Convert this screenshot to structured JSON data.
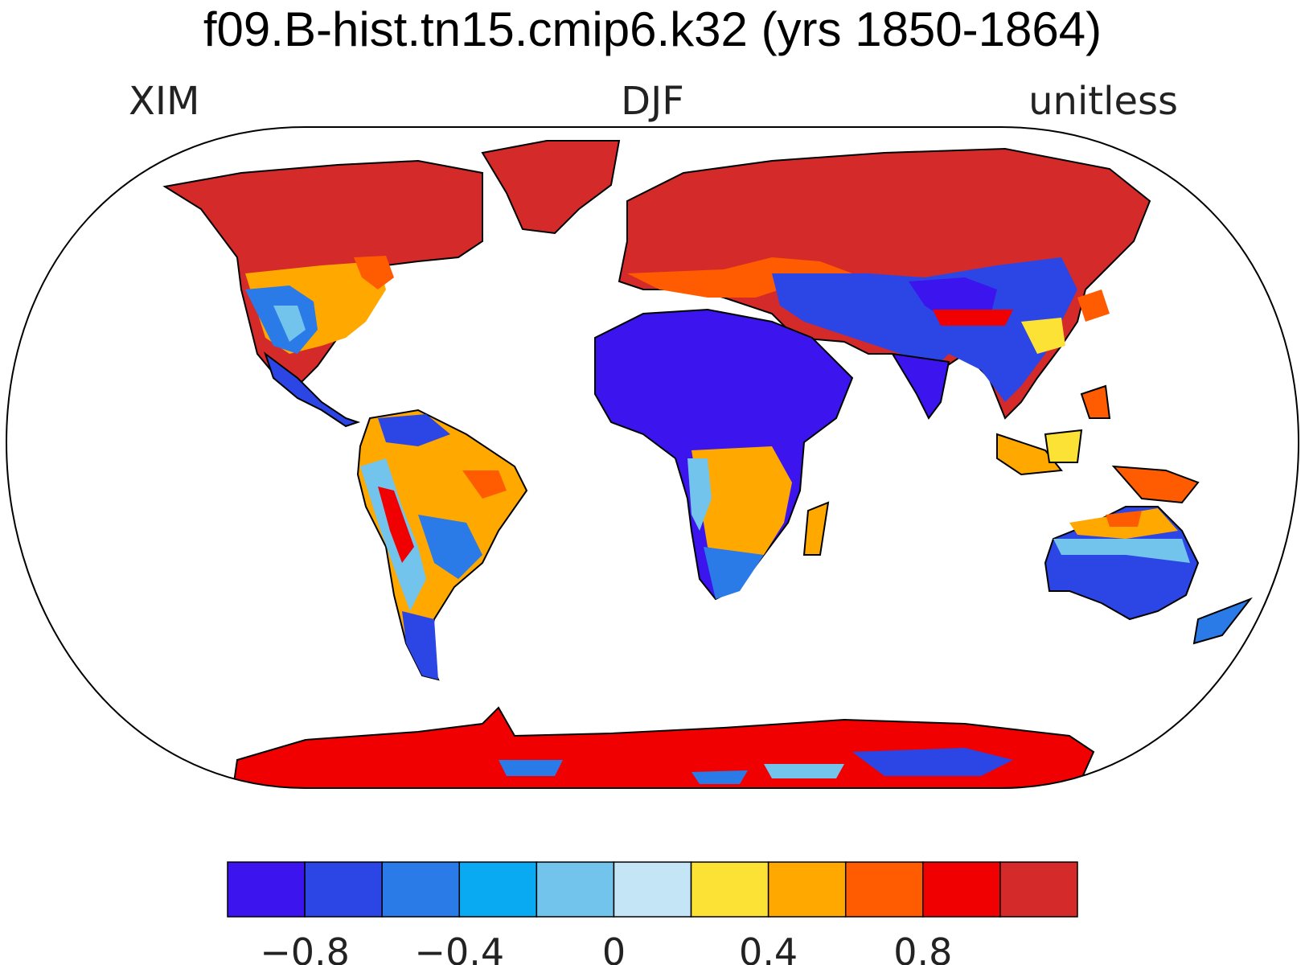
{
  "title": "f09.B-hist.tn15.cmip6.k32 (yrs 1850-1864)",
  "left_label": "XIM",
  "center_label": "DJF",
  "right_label": "unitless",
  "colorbar": {
    "colors": [
      "#3c14ee",
      "#2c46e6",
      "#2a7ae8",
      "#0aaaf2",
      "#73c4ec",
      "#c4e5f6",
      "#fde236",
      "#ffa800",
      "#ff5b00",
      "#f00000",
      "#d42a2a"
    ],
    "tick_labels": [
      "−0.8",
      "−0.4",
      "0",
      "0.4",
      "0.8"
    ],
    "tick_values": [
      -0.8,
      -0.4,
      0,
      0.4,
      0.8
    ]
  },
  "map_colors": {
    "ocean": "#ffffff",
    "coast": "#000000"
  }
}
